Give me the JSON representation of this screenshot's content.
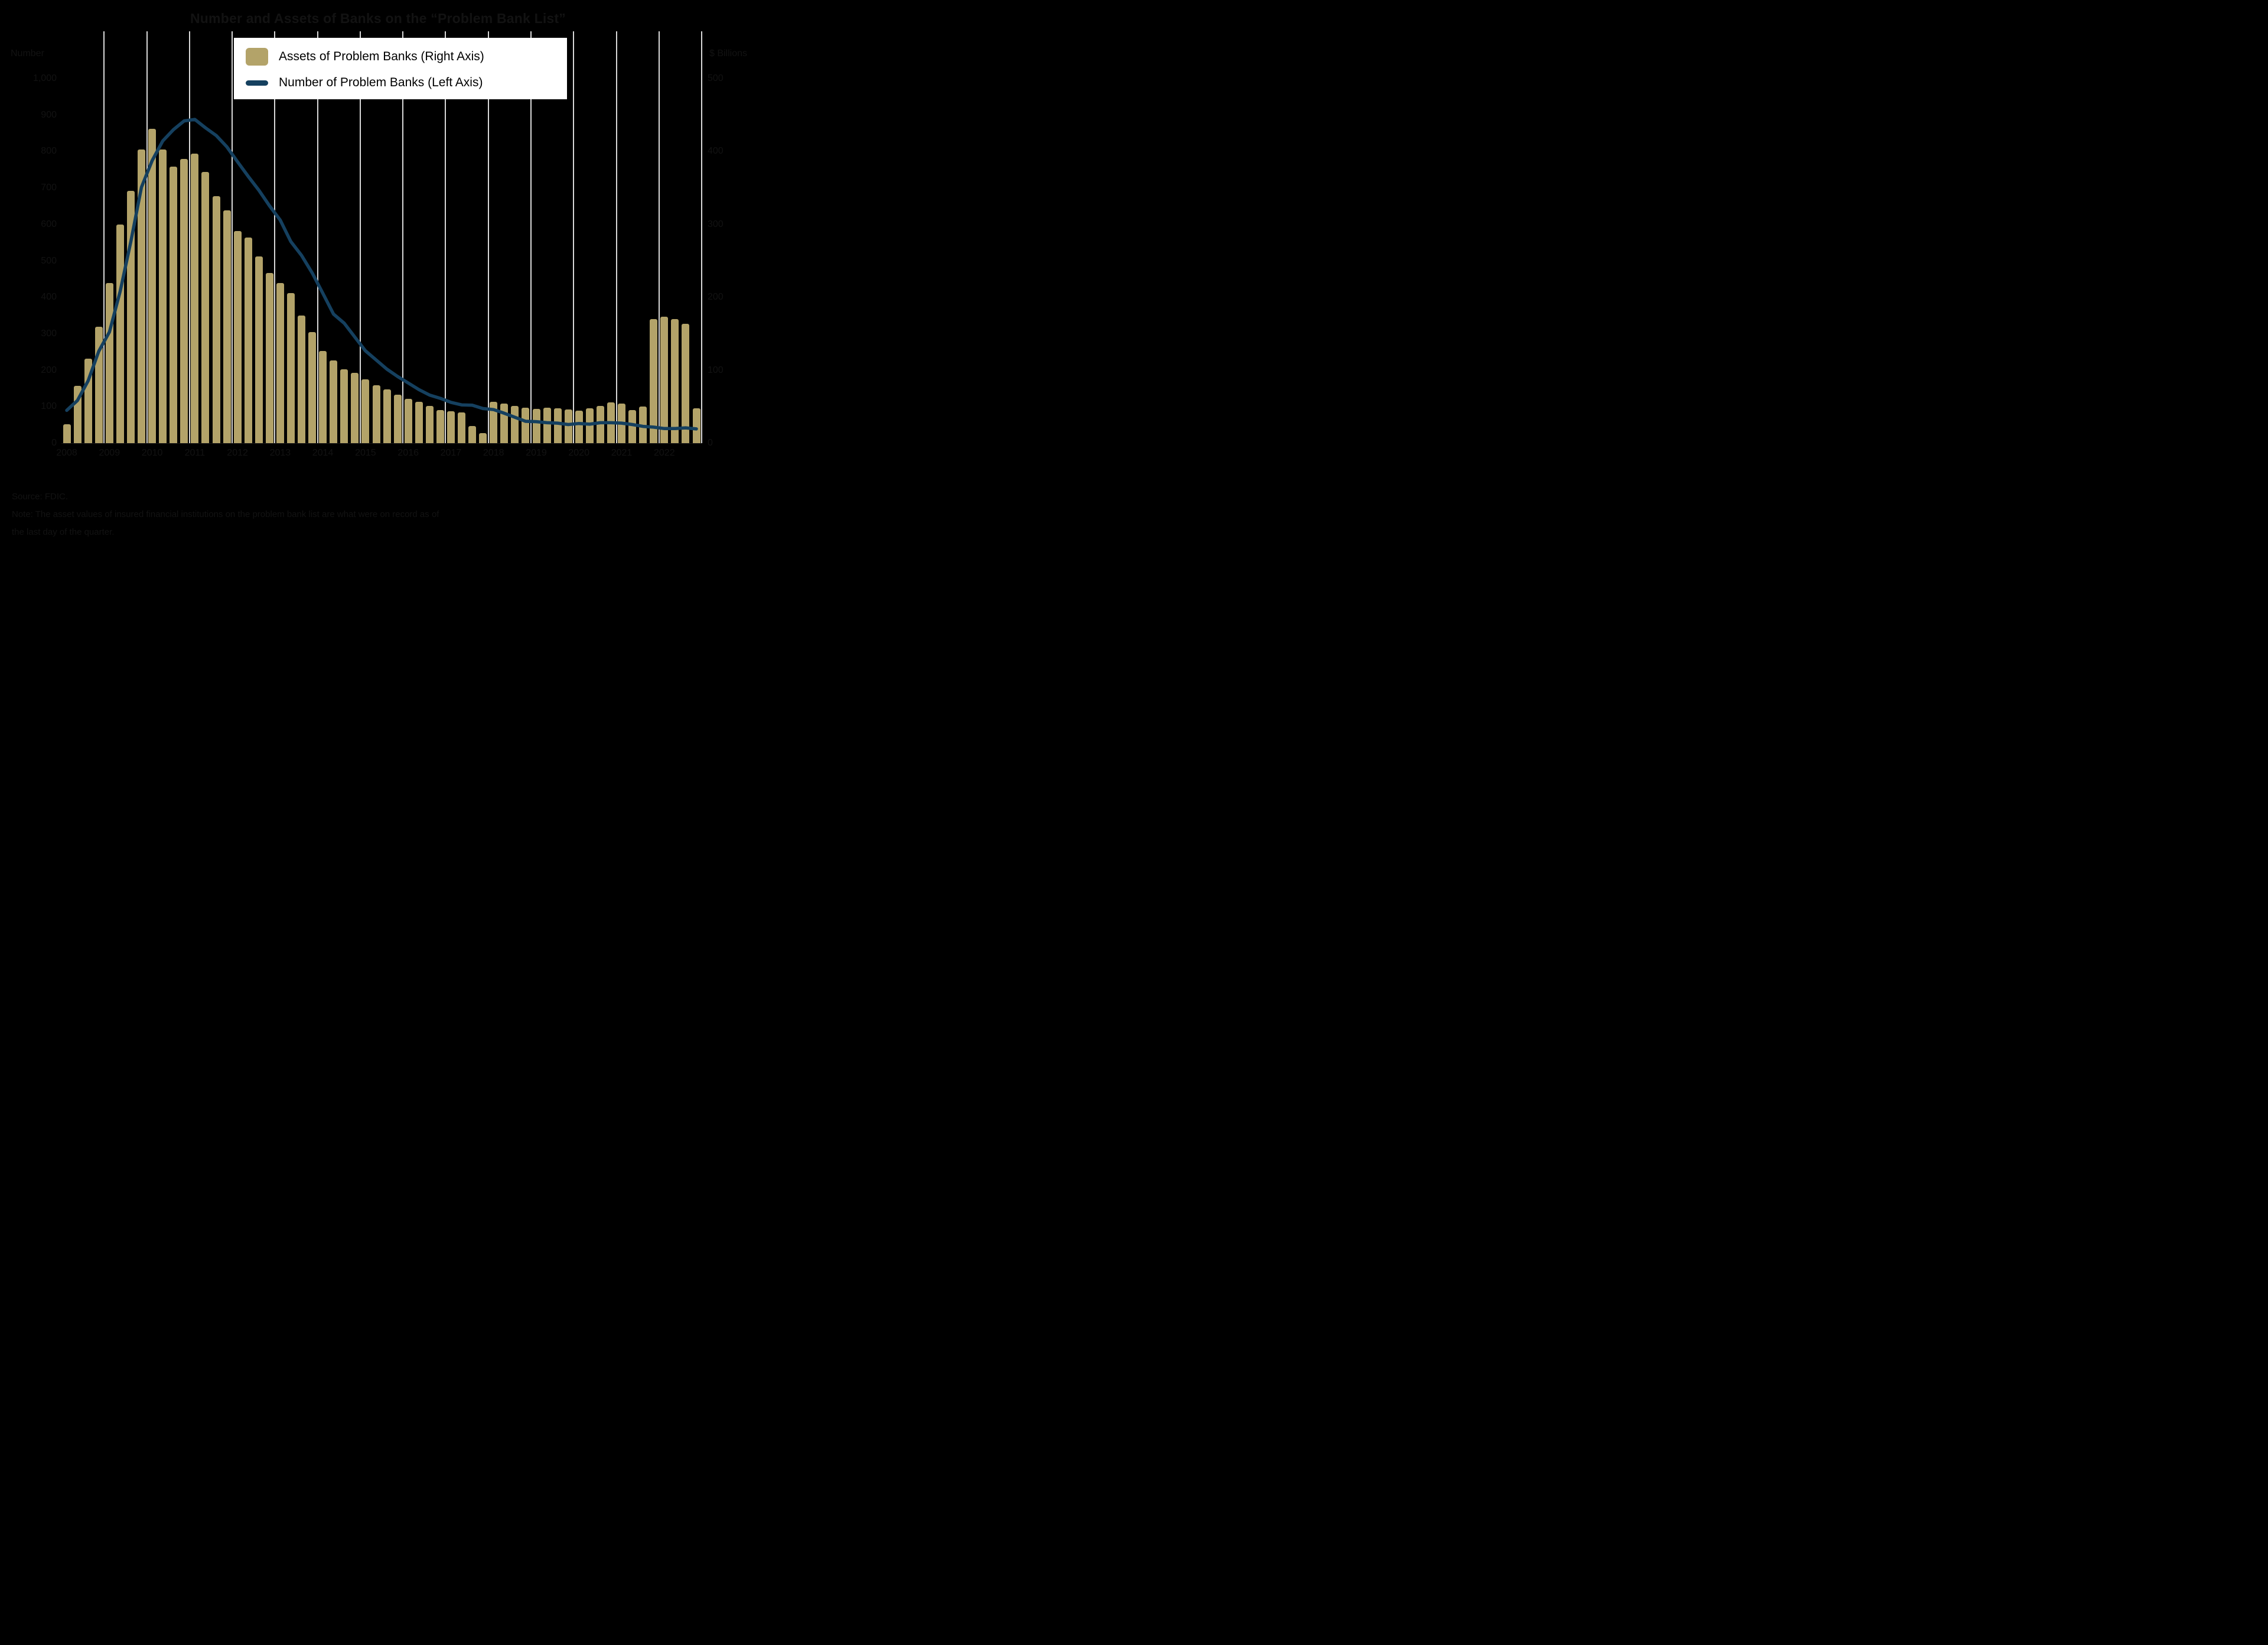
{
  "title": "Number and Assets of Banks on the “Problem Bank List”",
  "colors": {
    "background": "#000000",
    "bar": "#b3a369",
    "line": "#15405f",
    "gridline": "#d9d9d9",
    "legend_background": "#ffffff",
    "legend_text": "#000000",
    "muted_text": "#121212"
  },
  "left_axis": {
    "title": "Number",
    "ticks": [
      "1,000",
      "900",
      "800",
      "700",
      "600",
      "500",
      "400",
      "300",
      "200",
      "100",
      "0"
    ],
    "max": 1000
  },
  "right_axis": {
    "title": "$ Billions",
    "ticks": [
      "500",
      "400",
      "300",
      "200",
      "100",
      "0"
    ],
    "max": 500
  },
  "x_axis": {
    "year_labels": [
      "2008",
      "2009",
      "2010",
      "2011",
      "2012",
      "2013",
      "2014",
      "2015",
      "2016",
      "2017",
      "2018",
      "2019",
      "2020",
      "2021",
      "2022"
    ]
  },
  "legend": {
    "items": [
      {
        "label": "Assets of Problem Banks (Right Axis)",
        "swatch": "bar"
      },
      {
        "label": "Number of Problem Banks (Left Axis)",
        "swatch": "line"
      }
    ]
  },
  "footer": {
    "source": "Source: FDIC.",
    "note1": "Note: The asset values of insured financial institutions on the problem bank list are what were on record as of",
    "note2": "the last day of the quarter."
  },
  "chart_data": {
    "type": "bar+line",
    "title": "Number and Assets of Banks on the “Problem Bank List”",
    "x": [
      "2008Q1",
      "2008Q2",
      "2008Q3",
      "2008Q4",
      "2009Q1",
      "2009Q2",
      "2009Q3",
      "2009Q4",
      "2010Q1",
      "2010Q2",
      "2010Q3",
      "2010Q4",
      "2011Q1",
      "2011Q2",
      "2011Q3",
      "2011Q4",
      "2012Q1",
      "2012Q2",
      "2012Q3",
      "2012Q4",
      "2013Q1",
      "2013Q2",
      "2013Q3",
      "2013Q4",
      "2014Q1",
      "2014Q2",
      "2014Q3",
      "2014Q4",
      "2015Q1",
      "2015Q2",
      "2015Q3",
      "2015Q4",
      "2016Q1",
      "2016Q2",
      "2016Q3",
      "2016Q4",
      "2017Q1",
      "2017Q2",
      "2017Q3",
      "2017Q4",
      "2018Q1",
      "2018Q2",
      "2018Q3",
      "2018Q4",
      "2019Q1",
      "2019Q2",
      "2019Q3",
      "2019Q4",
      "2020Q1",
      "2020Q2",
      "2020Q3",
      "2020Q4",
      "2021Q1",
      "2021Q2",
      "2021Q3",
      "2021Q4",
      "2022Q1",
      "2022Q2",
      "2022Q3",
      "2022Q4"
    ],
    "series": [
      {
        "name": "Assets of Problem Banks",
        "type": "bar",
        "axis": "right",
        "unit": "$ billions",
        "values": [
          26.3,
          78.3,
          115.6,
          159.4,
          220.0,
          299.8,
          345.9,
          402.8,
          431.2,
          403.2,
          379.2,
          390.0,
          397.0,
          372.0,
          339.1,
          319.1,
          291.1,
          282.4,
          256.4,
          233.1,
          220.0,
          206.1,
          174.9,
          152.7,
          126.1,
          113.4,
          101.7,
          96.8,
          87.6,
          79.8,
          73.9,
          66.3,
          60.7,
          56.4,
          51.4,
          45.6,
          43.9,
          42.1,
          23.7,
          13.9,
          56.4,
          54.0,
          50.9,
          48.5,
          47.2,
          48.8,
          47.6,
          46.2,
          44.6,
          48.1,
          51.4,
          55.8,
          54.6,
          45.8,
          50.6,
          170.4,
          173.1,
          170.3,
          163.8,
          47.5
        ]
      },
      {
        "name": "Number of Problem Banks",
        "type": "line",
        "axis": "left",
        "unit": "count",
        "values": [
          90,
          117,
          171,
          252,
          305,
          416,
          552,
          702,
          775,
          829,
          860,
          884,
          888,
          865,
          844,
          813,
          772,
          732,
          694,
          651,
          612,
          553,
          515,
          467,
          411,
          354,
          329,
          291,
          253,
          228,
          203,
          183,
          165,
          147,
          132,
          123,
          112,
          105,
          104,
          95,
          92,
          82,
          71,
          60,
          59,
          56,
          55,
          51,
          54,
          52,
          56,
          56,
          55,
          51,
          46,
          44,
          40,
          40,
          42,
          39
        ]
      }
    ],
    "left_ylim": [
      0,
      1000
    ],
    "right_ylim": [
      0,
      500
    ],
    "grid": "vertical lines at year boundaries only",
    "legend_position": "top-center"
  }
}
